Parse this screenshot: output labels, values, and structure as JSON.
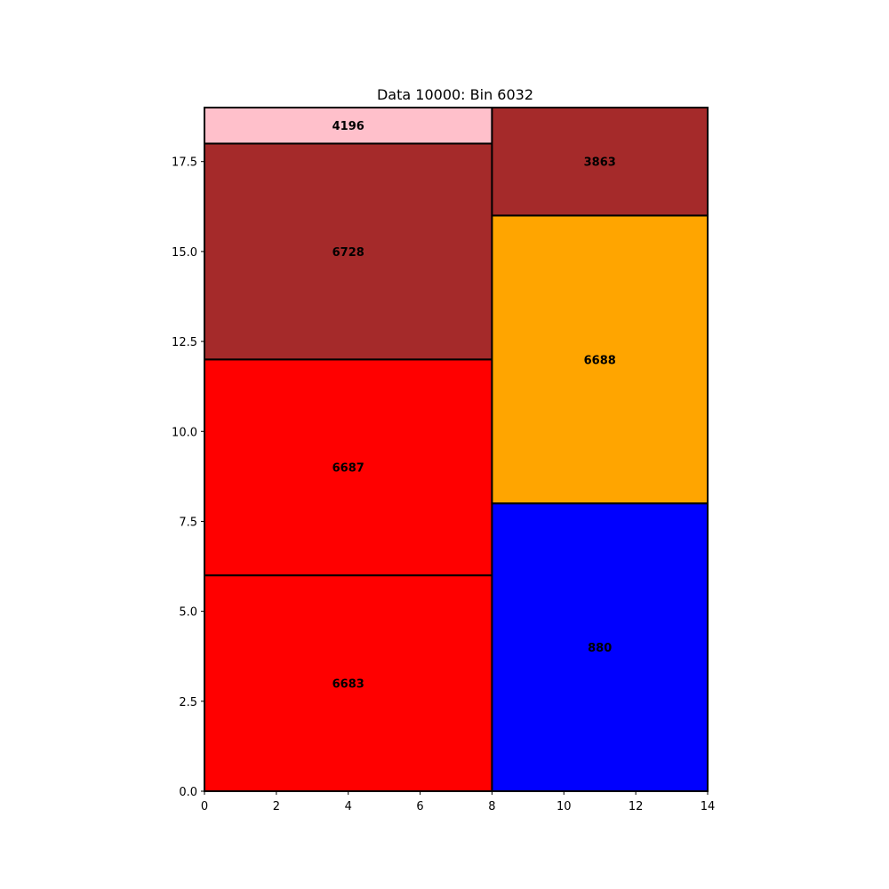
{
  "chart_data": {
    "type": "rectangle-packing",
    "title": "Data 10000: Bin 6032",
    "xlabel": "",
    "ylabel": "",
    "xlim": [
      0,
      14
    ],
    "ylim": [
      0,
      19
    ],
    "xticks": [
      "0",
      "2",
      "4",
      "6",
      "8",
      "10",
      "12",
      "14"
    ],
    "xtick_values": [
      0,
      2,
      4,
      6,
      8,
      10,
      12,
      14
    ],
    "yticks": [
      "0.0",
      "2.5",
      "5.0",
      "7.5",
      "10.0",
      "12.5",
      "15.0",
      "17.5"
    ],
    "ytick_values": [
      0,
      2.5,
      5,
      7.5,
      10,
      12.5,
      15,
      17.5
    ],
    "grid": false,
    "rectangles": [
      {
        "label": "6683",
        "x": 0,
        "y": 0,
        "width": 8,
        "height": 6,
        "color": "#ff0000"
      },
      {
        "label": "6687",
        "x": 0,
        "y": 6,
        "width": 8,
        "height": 6,
        "color": "#ff0000"
      },
      {
        "label": "6728",
        "x": 0,
        "y": 12,
        "width": 8,
        "height": 6,
        "color": "#a52a2a"
      },
      {
        "label": "4196",
        "x": 0,
        "y": 18,
        "width": 8,
        "height": 1,
        "color": "#ffc0cb"
      },
      {
        "label": "880",
        "x": 8,
        "y": 0,
        "width": 6,
        "height": 8,
        "color": "#0000ff"
      },
      {
        "label": "6688",
        "x": 8,
        "y": 8,
        "width": 6,
        "height": 8,
        "color": "#ffa500"
      },
      {
        "label": "3863",
        "x": 8,
        "y": 16,
        "width": 6,
        "height": 3,
        "color": "#a52a2a"
      }
    ]
  }
}
